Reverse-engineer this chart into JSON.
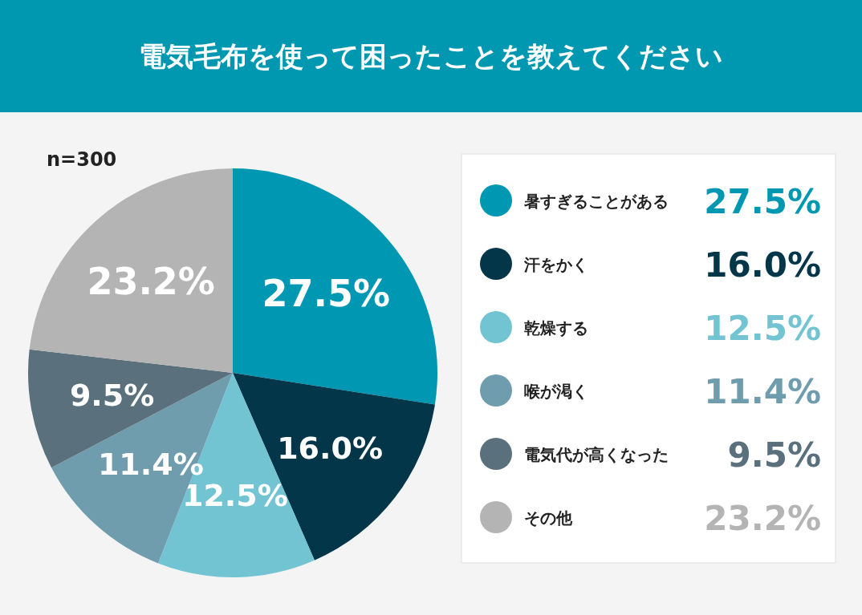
{
  "chart_data": {
    "type": "pie",
    "title": "電気毛布を使って困ったことを教えてください",
    "subtitle": "n=300",
    "categories": [
      "暑すぎることがある",
      "汗をかく",
      "乾燥する",
      "喉が渇く",
      "電気代が高くなった",
      "その他"
    ],
    "values": [
      27.5,
      16.0,
      12.5,
      11.4,
      9.5,
      23.2
    ],
    "colors": [
      "#0097b2",
      "#04364a",
      "#72c4d3",
      "#6f9dae",
      "#5a707c",
      "#b4b4b4"
    ],
    "value_labels": [
      "27.5%",
      "16.0%",
      "12.5%",
      "11.4%",
      "9.5%",
      "23.2%"
    ],
    "legend": "right"
  }
}
